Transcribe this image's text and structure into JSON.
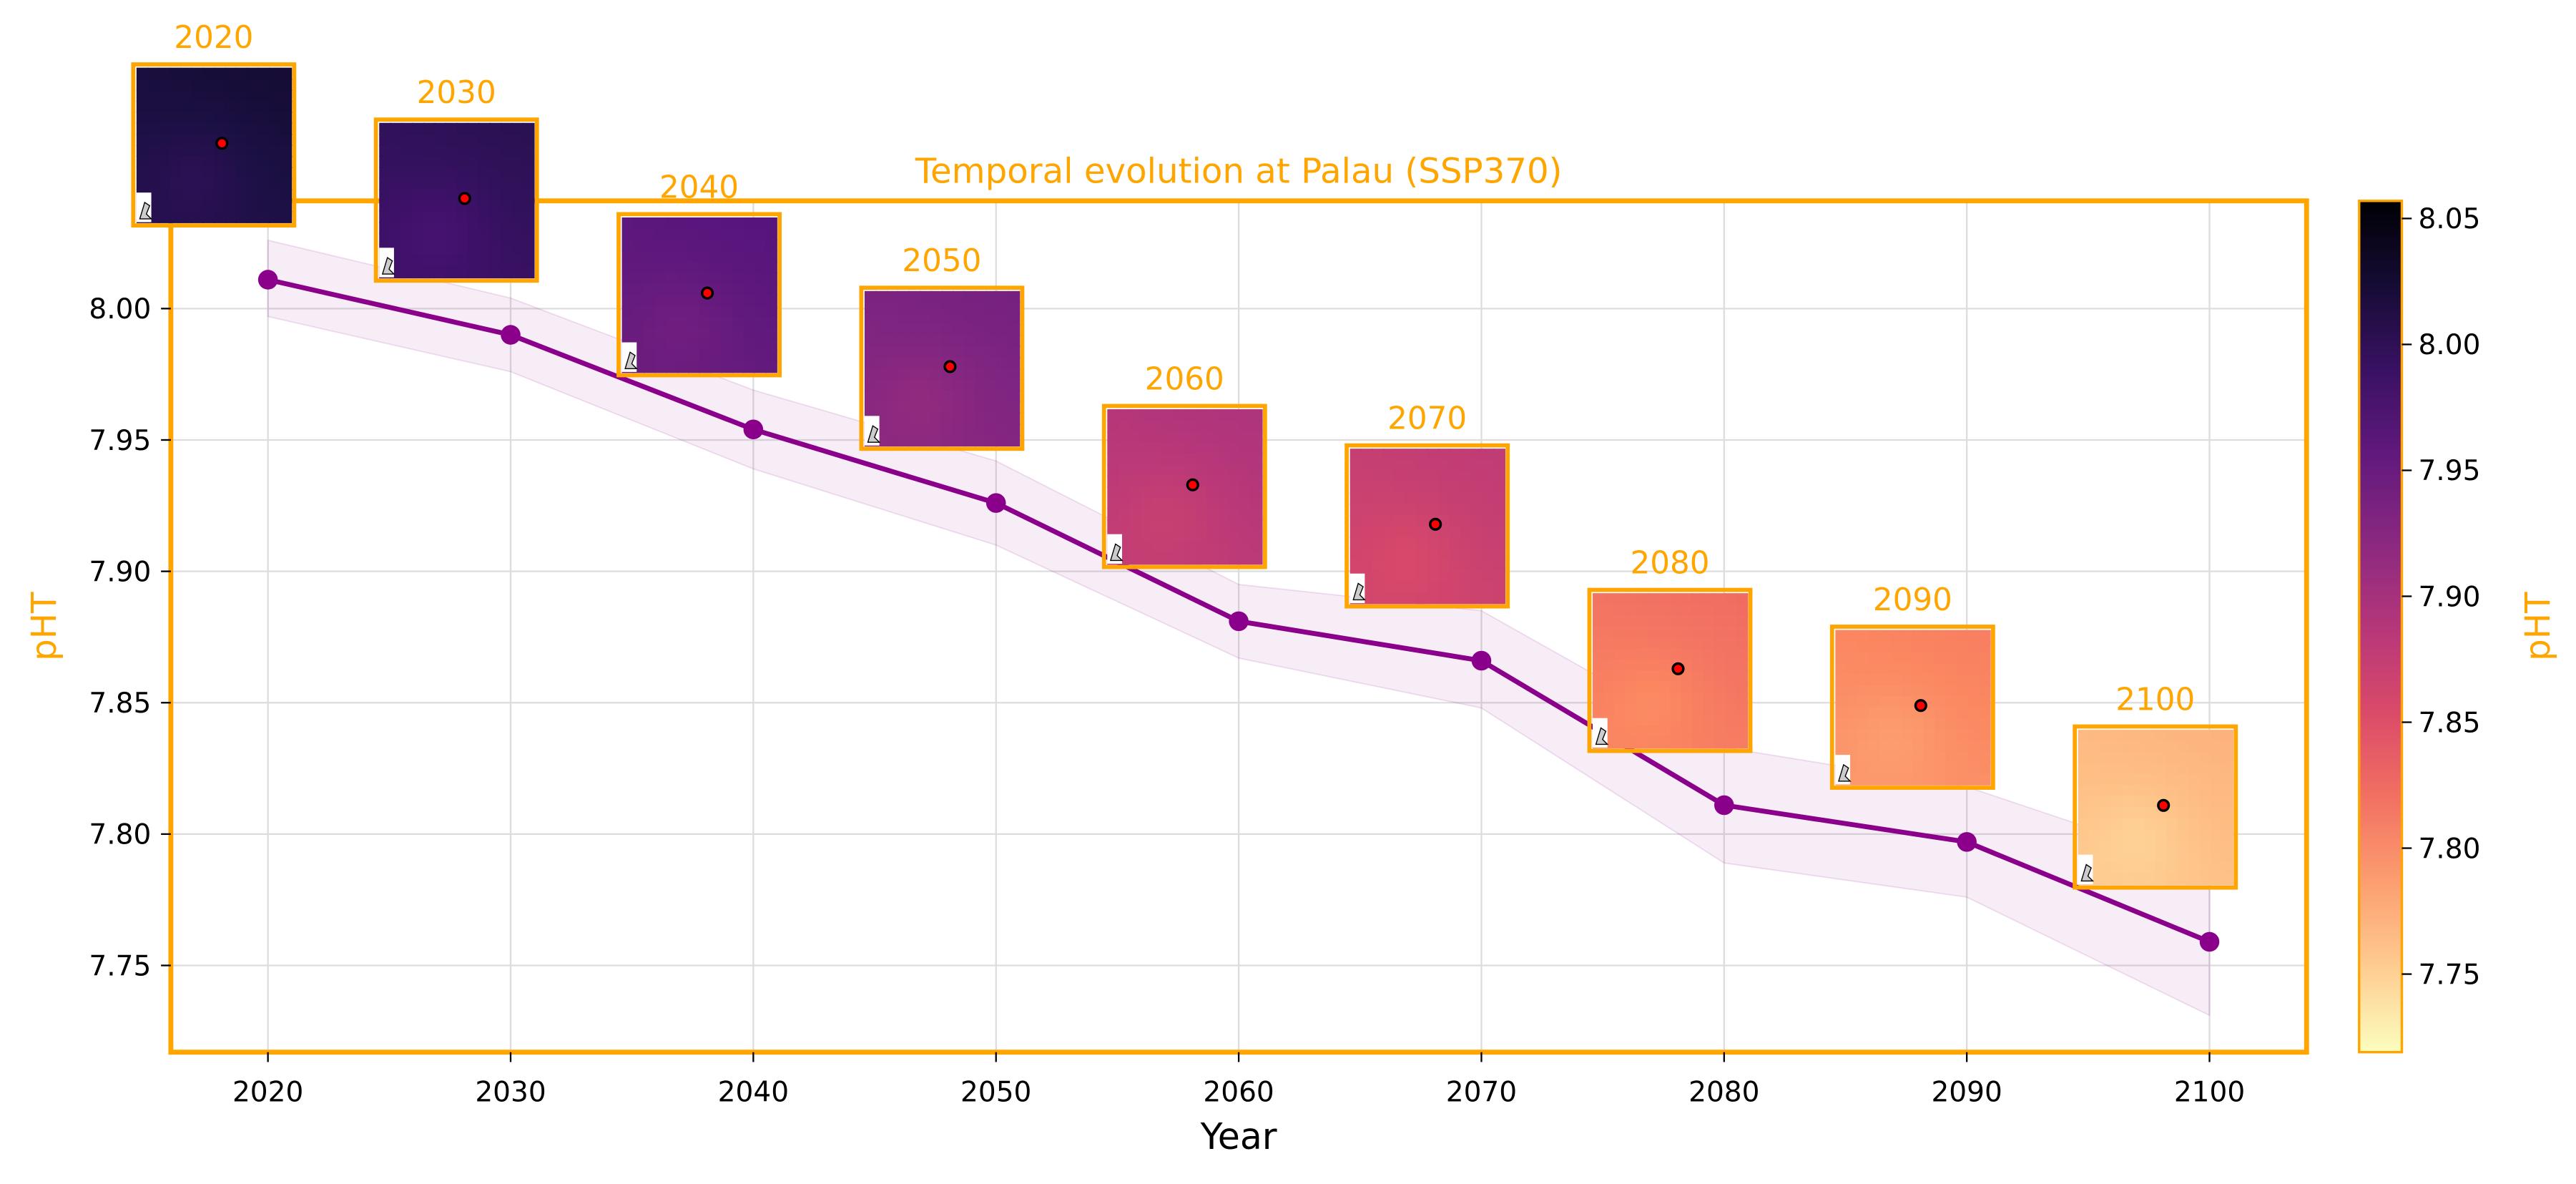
{
  "chart_data": {
    "type": "line",
    "title": "Temporal evolution at Palau (SSP370)",
    "xlabel": "Year",
    "ylabel": "pHT",
    "x": [
      2020,
      2030,
      2040,
      2050,
      2060,
      2070,
      2080,
      2090,
      2100
    ],
    "series": [
      {
        "values": [
          8.011,
          7.99,
          7.954,
          7.926,
          7.881,
          7.866,
          7.811,
          7.797,
          7.759
        ],
        "band_upper": [
          8.026,
          8.004,
          7.969,
          7.942,
          7.895,
          7.885,
          7.833,
          7.818,
          7.787
        ],
        "band_lower": [
          7.997,
          7.976,
          7.939,
          7.91,
          7.867,
          7.848,
          7.789,
          7.776,
          7.731
        ],
        "color": "#8b008b"
      }
    ],
    "xlim": [
      2016,
      2104
    ],
    "ylim": [
      7.717,
      8.041
    ],
    "xticks": [
      "2020",
      "2030",
      "2040",
      "2050",
      "2060",
      "2070",
      "2080",
      "2090",
      "2100"
    ],
    "yticks": [
      "7.75",
      "7.80",
      "7.85",
      "7.90",
      "7.95",
      "8.00"
    ],
    "grid": true,
    "frame_color": "#ffa500",
    "inset_labels": [
      "2020",
      "2030",
      "2040",
      "2050",
      "2060",
      "2070",
      "2080",
      "2090",
      "2100"
    ],
    "colorbar": {
      "label": "pHT",
      "colormap": "magma_r",
      "range": [
        7.719,
        8.057
      ],
      "ticks": [
        "7.75",
        "7.80",
        "7.85",
        "7.90",
        "7.95",
        "8.00",
        "8.05"
      ]
    }
  }
}
